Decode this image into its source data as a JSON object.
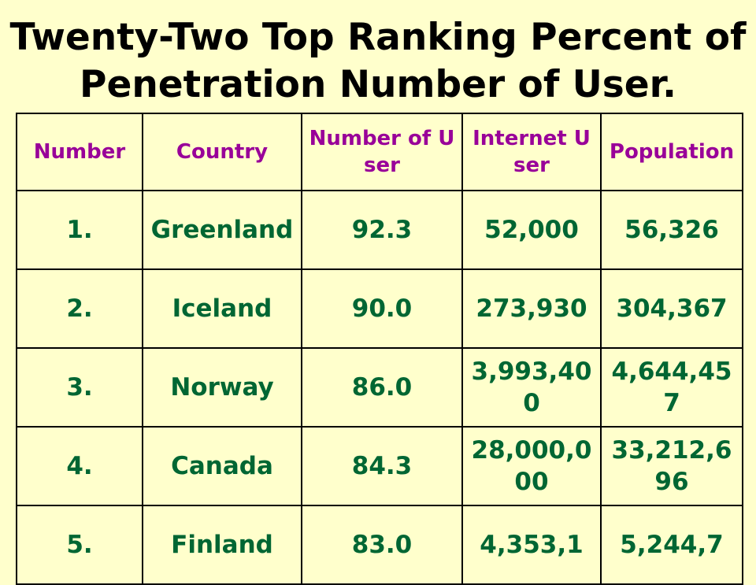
{
  "title": "Twenty-Two Top Ranking Percent of Penetration Number of User.",
  "headers": [
    "Number",
    "Country",
    "Number of User",
    "Internet User",
    "Population"
  ],
  "rows": [
    {
      "number": "1.",
      "country": "Greenland",
      "penetration": "92.3",
      "internet_users": "52,000",
      "population": "56,326"
    },
    {
      "number": "2.",
      "country": "Iceland",
      "penetration": "90.0",
      "internet_users": "273,930",
      "population": "304,367"
    },
    {
      "number": "3.",
      "country": "Norway",
      "penetration": "86.0",
      "internet_users": "3,993,400",
      "population": "4,644,457"
    },
    {
      "number": "4.",
      "country": "Canada",
      "penetration": "84.3",
      "internet_users": "28,000,000",
      "population": "33,212,696"
    },
    {
      "number": "5.",
      "country": "Finland",
      "penetration": "83.0",
      "internet_users": "4,353,1",
      "population": "5,244,7"
    }
  ],
  "colors": {
    "background": "#FFFFCC",
    "title": "#000000",
    "header_text": "#990099",
    "cell_text": "#006633",
    "border": "#000000"
  }
}
